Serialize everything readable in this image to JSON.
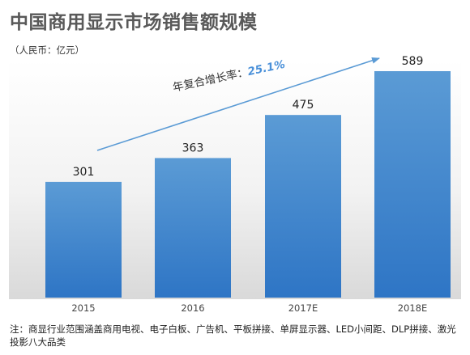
{
  "title": "中国商用显示市场销售额规模",
  "unit_label": "（人民币：亿元）",
  "cagr": {
    "label": "年复合增长率：",
    "value": "25.1%"
  },
  "note": "注：商显行业范围涵盖商用电视、电子白板、广告机、平板拼接、单屏显示器、LED小间距、DLP拼接、激光投影八大品类",
  "colors": {
    "bar_top": "#5b9bd5",
    "bar_bottom": "#2e75c5",
    "arrow": "#5b9bd5"
  },
  "chart_data": {
    "type": "bar",
    "categories": [
      "2015",
      "2016",
      "2017E",
      "2018E"
    ],
    "values": [
      301,
      363,
      475,
      589
    ],
    "data_labels": [
      "301",
      "363",
      "475",
      "589"
    ],
    "ylim": [
      0,
      600
    ],
    "grid": false,
    "legend": "none"
  }
}
